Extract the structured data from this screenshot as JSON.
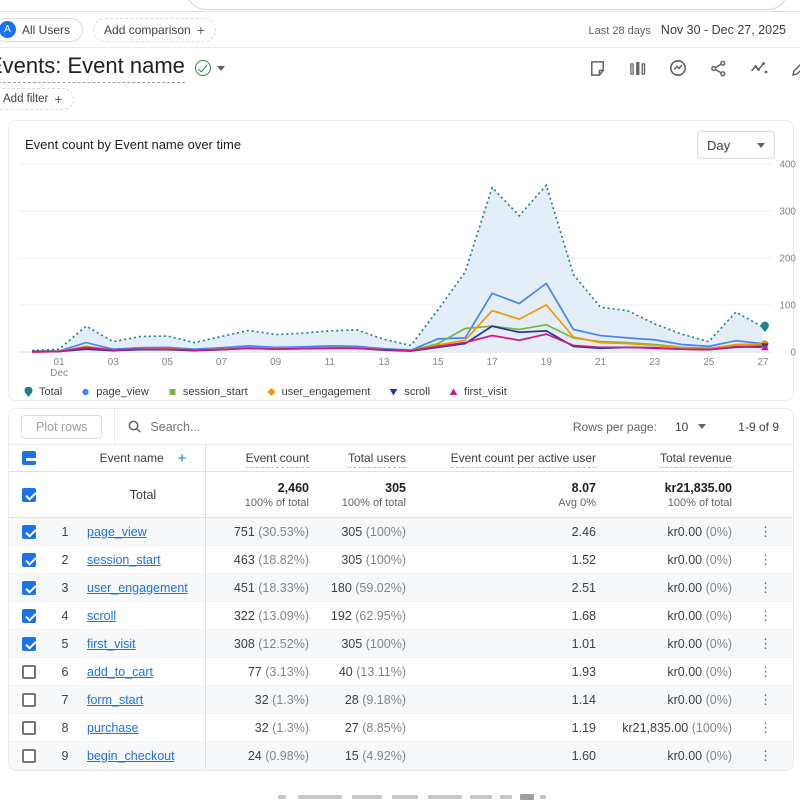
{
  "header": {
    "audience_chip": "All Users",
    "audience_initial": "A",
    "add_comparison_label": "Add comparison",
    "date_preset": "Last 28 days",
    "date_range": "Nov 30 - Dec 27, 2025"
  },
  "report": {
    "title": "Events: Event name",
    "add_filter_label": "Add filter"
  },
  "chart": {
    "title": "Event count by Event name over time",
    "granularity": "Day"
  },
  "chart_data": {
    "type": "line",
    "title": "Event count by Event name over time",
    "x": [
      "Nov 30",
      "Dec 01",
      "Dec 02",
      "Dec 03",
      "Dec 04",
      "Dec 05",
      "Dec 06",
      "Dec 07",
      "Dec 08",
      "Dec 09",
      "Dec 10",
      "Dec 11",
      "Dec 12",
      "Dec 13",
      "Dec 14",
      "Dec 15",
      "Dec 16",
      "Dec 17",
      "Dec 18",
      "Dec 19",
      "Dec 20",
      "Dec 21",
      "Dec 22",
      "Dec 23",
      "Dec 24",
      "Dec 25",
      "Dec 26",
      "Dec 27"
    ],
    "x_ticks": [
      {
        "i": 1,
        "label": "01",
        "sub": "Dec"
      },
      {
        "i": 3,
        "label": "03"
      },
      {
        "i": 5,
        "label": "05"
      },
      {
        "i": 7,
        "label": "07"
      },
      {
        "i": 9,
        "label": "09"
      },
      {
        "i": 11,
        "label": "11"
      },
      {
        "i": 13,
        "label": "13"
      },
      {
        "i": 15,
        "label": "15"
      },
      {
        "i": 17,
        "label": "17"
      },
      {
        "i": 19,
        "label": "19"
      },
      {
        "i": 21,
        "label": "21"
      },
      {
        "i": 23,
        "label": "23"
      },
      {
        "i": 25,
        "label": "25"
      },
      {
        "i": 27,
        "label": "27"
      }
    ],
    "ylim": [
      0,
      400
    ],
    "y_ticks": [
      0,
      100,
      200,
      300,
      400
    ],
    "grid": true,
    "legend_position": "bottom",
    "area_fill": "#e3eef9",
    "series": [
      {
        "name": "Total",
        "color": "#23808f",
        "style": "dotted",
        "shape": "pin",
        "values": [
          3,
          6,
          55,
          22,
          33,
          34,
          20,
          33,
          46,
          37,
          40,
          45,
          47,
          27,
          14,
          90,
          170,
          350,
          290,
          355,
          165,
          95,
          88,
          60,
          38,
          22,
          85,
          53
        ]
      },
      {
        "name": "page_view",
        "color": "#4285f4",
        "style": "solid",
        "shape": "circle",
        "values": [
          1,
          2,
          20,
          6,
          9,
          10,
          6,
          9,
          13,
          10,
          11,
          13,
          12,
          7,
          4,
          28,
          30,
          125,
          103,
          146,
          48,
          35,
          30,
          26,
          16,
          12,
          24,
          18
        ]
      },
      {
        "name": "session_start",
        "color": "#7cb342",
        "style": "solid",
        "shape": "square",
        "values": [
          1,
          2,
          8,
          4,
          6,
          6,
          4,
          6,
          9,
          7,
          8,
          9,
          9,
          5,
          3,
          18,
          50,
          55,
          48,
          58,
          30,
          22,
          20,
          16,
          10,
          8,
          14,
          15
        ]
      },
      {
        "name": "user_engagement",
        "color": "#f29900",
        "style": "solid",
        "shape": "diamond",
        "values": [
          0,
          1,
          12,
          4,
          6,
          7,
          4,
          6,
          9,
          7,
          8,
          9,
          9,
          5,
          2,
          15,
          25,
          88,
          70,
          100,
          32,
          20,
          18,
          14,
          9,
          7,
          16,
          17
        ]
      },
      {
        "name": "scroll",
        "color": "#283593",
        "style": "solid",
        "shape": "triangle-down",
        "values": [
          1,
          1,
          6,
          3,
          5,
          5,
          3,
          5,
          8,
          6,
          7,
          8,
          8,
          4,
          2,
          10,
          18,
          55,
          42,
          45,
          12,
          8,
          10,
          9,
          6,
          5,
          10,
          12
        ]
      },
      {
        "name": "first_visit",
        "color": "#d01884",
        "style": "solid",
        "shape": "triangle-up",
        "values": [
          0,
          1,
          10,
          4,
          6,
          6,
          4,
          5,
          8,
          6,
          7,
          8,
          8,
          5,
          3,
          12,
          20,
          35,
          25,
          38,
          14,
          10,
          10,
          8,
          6,
          5,
          11,
          10
        ]
      }
    ]
  },
  "table": {
    "plot_rows_label": "Plot rows",
    "search_placeholder": "Search...",
    "rows_per_page_label": "Rows per page:",
    "rows_per_page_value": "10",
    "pagination_range": "1-9 of 9",
    "columns": {
      "dimension": "Event name",
      "metrics": [
        "Event count",
        "Total users",
        "Event count per active user",
        "Total revenue"
      ]
    },
    "total_row": {
      "label": "Total",
      "count": "2,460",
      "count_sub": "100% of total",
      "users": "305",
      "users_sub": "100% of total",
      "per_user": "8.07",
      "per_user_sub": "Avg 0%",
      "revenue": "kr21,835.00",
      "revenue_sub": "100% of total"
    },
    "rows": [
      {
        "n": "1",
        "name": "page_view",
        "count": "751",
        "count_pct": "(30.53%)",
        "users": "305",
        "users_pct": "(100%)",
        "per_user": "2.46",
        "revenue": "kr0.00",
        "revenue_pct": "(0%)",
        "checked": true
      },
      {
        "n": "2",
        "name": "session_start",
        "count": "463",
        "count_pct": "(18.82%)",
        "users": "305",
        "users_pct": "(100%)",
        "per_user": "1.52",
        "revenue": "kr0.00",
        "revenue_pct": "(0%)",
        "checked": true
      },
      {
        "n": "3",
        "name": "user_engagement",
        "count": "451",
        "count_pct": "(18.33%)",
        "users": "180",
        "users_pct": "(59.02%)",
        "per_user": "2.51",
        "revenue": "kr0.00",
        "revenue_pct": "(0%)",
        "checked": true
      },
      {
        "n": "4",
        "name": "scroll",
        "count": "322",
        "count_pct": "(13.09%)",
        "users": "192",
        "users_pct": "(62.95%)",
        "per_user": "1.68",
        "revenue": "kr0.00",
        "revenue_pct": "(0%)",
        "checked": true
      },
      {
        "n": "5",
        "name": "first_visit",
        "count": "308",
        "count_pct": "(12.52%)",
        "users": "305",
        "users_pct": "(100%)",
        "per_user": "1.01",
        "revenue": "kr0.00",
        "revenue_pct": "(0%)",
        "checked": true
      },
      {
        "n": "6",
        "name": "add_to_cart",
        "count": "77",
        "count_pct": "(3.13%)",
        "users": "40",
        "users_pct": "(13.11%)",
        "per_user": "1.93",
        "revenue": "kr0.00",
        "revenue_pct": "(0%)",
        "checked": false
      },
      {
        "n": "7",
        "name": "form_start",
        "count": "32",
        "count_pct": "(1.3%)",
        "users": "28",
        "users_pct": "(9.18%)",
        "per_user": "1.14",
        "revenue": "kr0.00",
        "revenue_pct": "(0%)",
        "checked": false
      },
      {
        "n": "8",
        "name": "purchase",
        "count": "32",
        "count_pct": "(1.3%)",
        "users": "27",
        "users_pct": "(8.85%)",
        "per_user": "1.19",
        "revenue": "kr21,835.00",
        "revenue_pct": "(100%)",
        "checked": false
      },
      {
        "n": "9",
        "name": "begin_checkout",
        "count": "24",
        "count_pct": "(0.98%)",
        "users": "15",
        "users_pct": "(4.92%)",
        "per_user": "1.60",
        "revenue": "kr0.00",
        "revenue_pct": "(0%)",
        "checked": false
      }
    ]
  }
}
